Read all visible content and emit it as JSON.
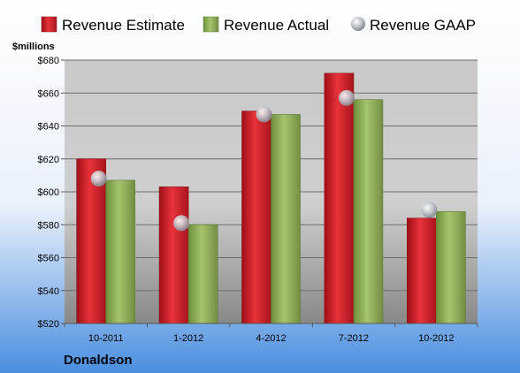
{
  "chart_data": {
    "type": "bar",
    "unit_label": "$millions",
    "company": "Donaldson",
    "categories": [
      "10-2011",
      "1-2012",
      "4-2012",
      "7-2012",
      "10-2012"
    ],
    "series": [
      {
        "name": "Revenue Estimate",
        "kind": "bar",
        "color": "#d9202a",
        "values": [
          620,
          603,
          649,
          672,
          584
        ]
      },
      {
        "name": "Revenue Actual",
        "kind": "bar",
        "color": "#8fae5a",
        "values": [
          607,
          580,
          647,
          656,
          588
        ]
      },
      {
        "name": "Revenue GAAP",
        "kind": "point",
        "color": "#b8bcc4",
        "values": [
          608,
          581,
          647,
          657,
          589
        ]
      }
    ],
    "ylim": [
      520,
      680
    ],
    "yticks": [
      520,
      540,
      560,
      580,
      600,
      620,
      640,
      660,
      680
    ],
    "ytick_labels": [
      "$520",
      "$540",
      "$560",
      "$580",
      "$600",
      "$620",
      "$640",
      "$660",
      "$680"
    ],
    "grid": true,
    "legend": "top"
  }
}
